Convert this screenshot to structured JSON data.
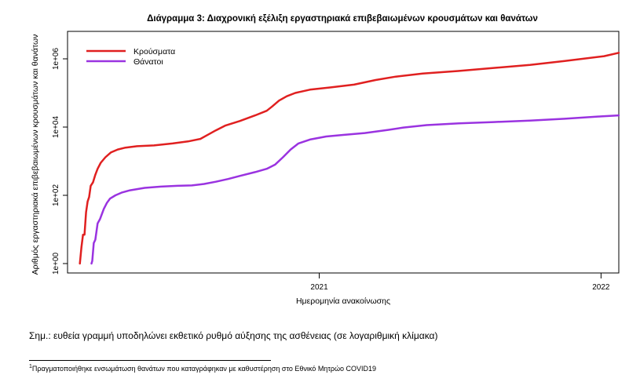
{
  "chart_data": {
    "type": "line",
    "title": "Διάγραμμα 3: Διαχρονική εξέλιξη εργαστηριακά επιβεβαιωμένων κρουσμάτων και θανάτων",
    "xlabel": "Ημερομηνία ανακοίνωσης",
    "ylabel": "Αριθμός εργαστηριακά επιβεβαιωμένων κρουσμάτων και θανάτων",
    "x_ticks": [
      "2021",
      "2022"
    ],
    "y_ticks": [
      "1e+00",
      "1e+02",
      "1e+04",
      "1e+06"
    ],
    "y_scale": "log",
    "ylim": [
      1,
      10000000
    ],
    "xlim": [
      "2020-02-10",
      "2022-01-24"
    ],
    "legend_position": "top-left",
    "series": [
      {
        "name": "Κρούσματα",
        "color": "#e02020",
        "points": [
          [
            "2020-02-26",
            1
          ],
          [
            "2020-02-28",
            3
          ],
          [
            "2020-03-01",
            7
          ],
          [
            "2020-03-03",
            7
          ],
          [
            "2020-03-05",
            32
          ],
          [
            "2020-03-07",
            66
          ],
          [
            "2020-03-09",
            89
          ],
          [
            "2020-03-11",
            190
          ],
          [
            "2020-03-14",
            240
          ],
          [
            "2020-03-17",
            400
          ],
          [
            "2020-03-20",
            600
          ],
          [
            "2020-03-24",
            900
          ],
          [
            "2020-03-30",
            1300
          ],
          [
            "2020-04-06",
            1800
          ],
          [
            "2020-04-15",
            2200
          ],
          [
            "2020-04-25",
            2500
          ],
          [
            "2020-05-10",
            2750
          ],
          [
            "2020-06-01",
            2900
          ],
          [
            "2020-06-25",
            3300
          ],
          [
            "2020-07-15",
            3800
          ],
          [
            "2020-07-31",
            4500
          ],
          [
            "2020-08-10",
            6000
          ],
          [
            "2020-08-20",
            8000
          ],
          [
            "2020-09-01",
            11000
          ],
          [
            "2020-09-20",
            15000
          ],
          [
            "2020-10-10",
            22000
          ],
          [
            "2020-10-25",
            30000
          ],
          [
            "2020-11-01",
            40000
          ],
          [
            "2020-11-10",
            60000
          ],
          [
            "2020-11-20",
            80000
          ],
          [
            "2020-12-01",
            100000
          ],
          [
            "2020-12-20",
            125000
          ],
          [
            "2021-01-15",
            145000
          ],
          [
            "2021-02-15",
            175000
          ],
          [
            "2021-03-15",
            240000
          ],
          [
            "2021-04-10",
            300000
          ],
          [
            "2021-05-15",
            370000
          ],
          [
            "2021-06-30",
            440000
          ],
          [
            "2021-08-15",
            540000
          ],
          [
            "2021-10-01",
            660000
          ],
          [
            "2021-11-15",
            860000
          ],
          [
            "2022-01-05",
            1200000
          ],
          [
            "2022-01-24",
            1500000
          ]
        ]
      },
      {
        "name": "Θάνατοι",
        "color": "#9a33e0",
        "points": [
          [
            "2020-03-12",
            1
          ],
          [
            "2020-03-13",
            1.2
          ],
          [
            "2020-03-15",
            4
          ],
          [
            "2020-03-17",
            5
          ],
          [
            "2020-03-20",
            15
          ],
          [
            "2020-03-23",
            20
          ],
          [
            "2020-03-28",
            40
          ],
          [
            "2020-04-01",
            60
          ],
          [
            "2020-04-05",
            80
          ],
          [
            "2020-04-12",
            100
          ],
          [
            "2020-04-20",
            120
          ],
          [
            "2020-05-01",
            140
          ],
          [
            "2020-05-20",
            165
          ],
          [
            "2020-06-10",
            180
          ],
          [
            "2020-07-01",
            190
          ],
          [
            "2020-07-20",
            195
          ],
          [
            "2020-08-05",
            215
          ],
          [
            "2020-08-20",
            250
          ],
          [
            "2020-09-05",
            300
          ],
          [
            "2020-09-20",
            370
          ],
          [
            "2020-10-10",
            480
          ],
          [
            "2020-10-25",
            600
          ],
          [
            "2020-11-05",
            800
          ],
          [
            "2020-11-15",
            1300
          ],
          [
            "2020-11-25",
            2200
          ],
          [
            "2020-12-05",
            3300
          ],
          [
            "2020-12-20",
            4300
          ],
          [
            "2021-01-10",
            5300
          ],
          [
            "2021-02-01",
            5900
          ],
          [
            "2021-03-01",
            6700
          ],
          [
            "2021-04-01",
            8300
          ],
          [
            "2021-04-20",
            9700
          ],
          [
            "2021-05-20",
            11400
          ],
          [
            "2021-07-01",
            12800
          ],
          [
            "2021-08-15",
            14000
          ],
          [
            "2021-10-01",
            15500
          ],
          [
            "2021-11-15",
            17500
          ],
          [
            "2022-01-01",
            20500
          ],
          [
            "2022-01-24",
            22000
          ]
        ]
      }
    ]
  },
  "note": "Σημ.: ευθεία γραμμή υποδηλώνει εκθετικό ρυθμό αύξησης της ασθένειας (σε λογαριθμική κλίμακα)",
  "footnote": {
    "marker": "1",
    "text": "Πραγματοποιήθηκε ενσωμάτωση θανάτων που καταγράφηκαν με καθυστέρηση στο Εθνικό Μητρώο COVID19"
  }
}
